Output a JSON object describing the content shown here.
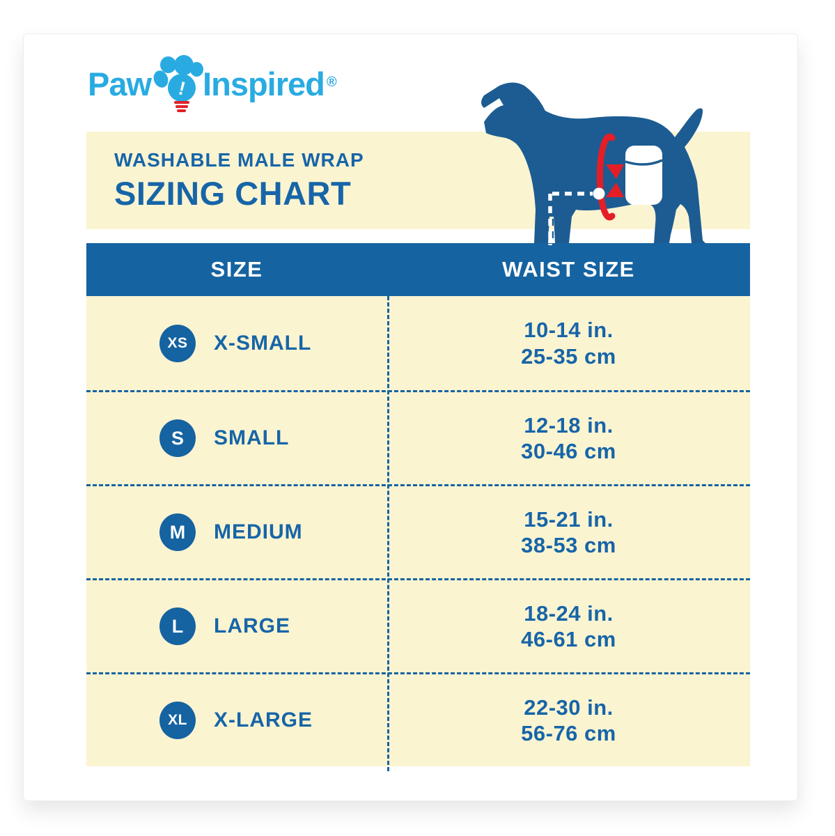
{
  "brand": {
    "word_left": "Paw",
    "word_right": "Inspired",
    "registered": "®",
    "bulb_shine": "!",
    "cyan": "#29ABE2",
    "red": "#E02228"
  },
  "heading": {
    "subtitle": "WASHABLE MALE WRAP",
    "title": "SIZING CHART"
  },
  "illustration": {
    "name": "dog-waist-measurement",
    "dog_color": "#1C5C92",
    "arrow_color": "#E41E26"
  },
  "colors": {
    "cream": "#FBF4D1",
    "deep_blue": "#1563A1",
    "text_blue": "#1765A8"
  },
  "table": {
    "columns": [
      "SIZE",
      "WAIST SIZE"
    ],
    "rows": [
      {
        "badge": "XS",
        "label": "X-SMALL",
        "inches": "10-14 in.",
        "cm": "25-35 cm"
      },
      {
        "badge": "S",
        "label": "SMALL",
        "inches": "12-18 in.",
        "cm": "30-46 cm"
      },
      {
        "badge": "M",
        "label": "MEDIUM",
        "inches": "15-21 in.",
        "cm": "38-53 cm"
      },
      {
        "badge": "L",
        "label": "LARGE",
        "inches": "18-24 in.",
        "cm": "46-61 cm"
      },
      {
        "badge": "XL",
        "label": "X-LARGE",
        "inches": "22-30 in.",
        "cm": "56-76 cm"
      }
    ]
  },
  "chart_data": {
    "type": "table",
    "title": "SIZING CHART",
    "subtitle": "WASHABLE MALE WRAP",
    "columns": [
      "SIZE",
      "WAIST SIZE"
    ],
    "rows": [
      [
        "XS",
        "X-SMALL",
        "10-14 in.",
        "25-35 cm"
      ],
      [
        "S",
        "SMALL",
        "12-18 in.",
        "30-46 cm"
      ],
      [
        "M",
        "MEDIUM",
        "15-21 in.",
        "38-53 cm"
      ],
      [
        "L",
        "LARGE",
        "18-24 in.",
        "46-61 cm"
      ],
      [
        "XL",
        "X-LARGE",
        "22-30 in.",
        "56-76 cm"
      ]
    ]
  }
}
